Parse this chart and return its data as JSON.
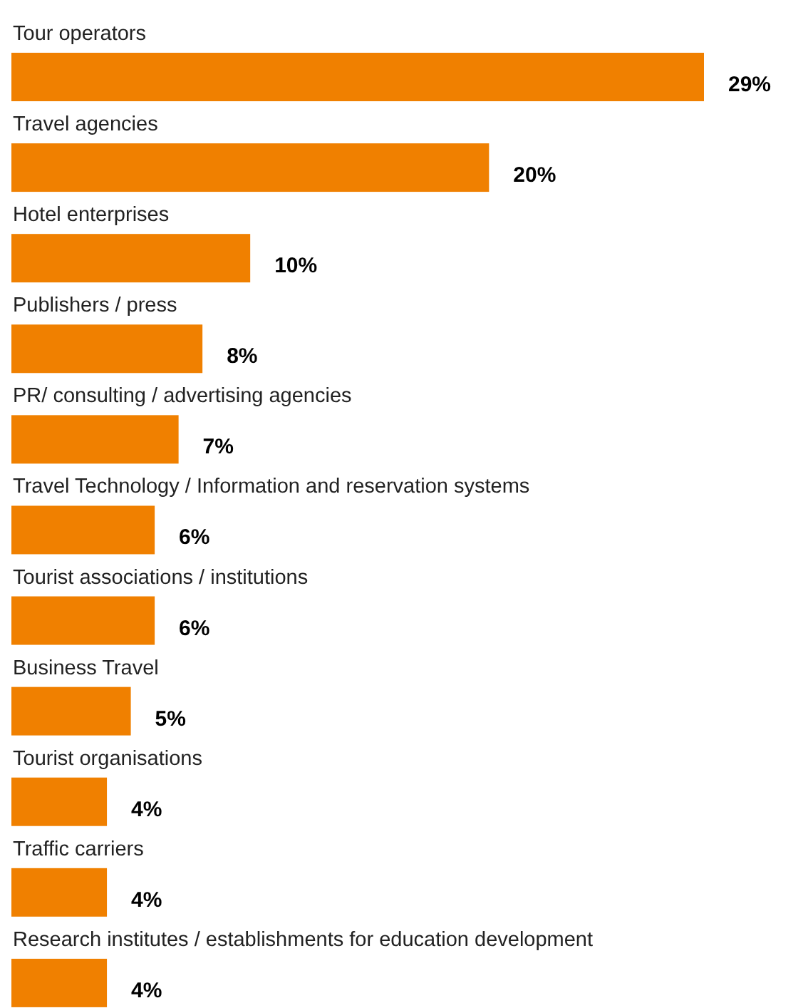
{
  "chart_data": {
    "type": "bar",
    "orientation": "horizontal",
    "categories": [
      "Tour operators",
      "Travel agencies",
      "Hotel enterprises",
      "Publishers / press",
      "PR/ consulting / advertising agencies",
      "Travel Technology / Information and reservation systems",
      "Tourist associations / institutions",
      "Business Travel",
      "Tourist organisations",
      "Traffic carriers",
      "Research institutes / establishments for education development"
    ],
    "values": [
      29,
      20,
      10,
      8,
      7,
      6,
      6,
      5,
      4,
      4,
      4
    ],
    "value_labels": [
      "29%",
      "20%",
      "10%",
      "8%",
      "7%",
      "6%",
      "6%",
      "5%",
      "4%",
      "4%",
      "4%"
    ],
    "color": "#f08000"
  }
}
